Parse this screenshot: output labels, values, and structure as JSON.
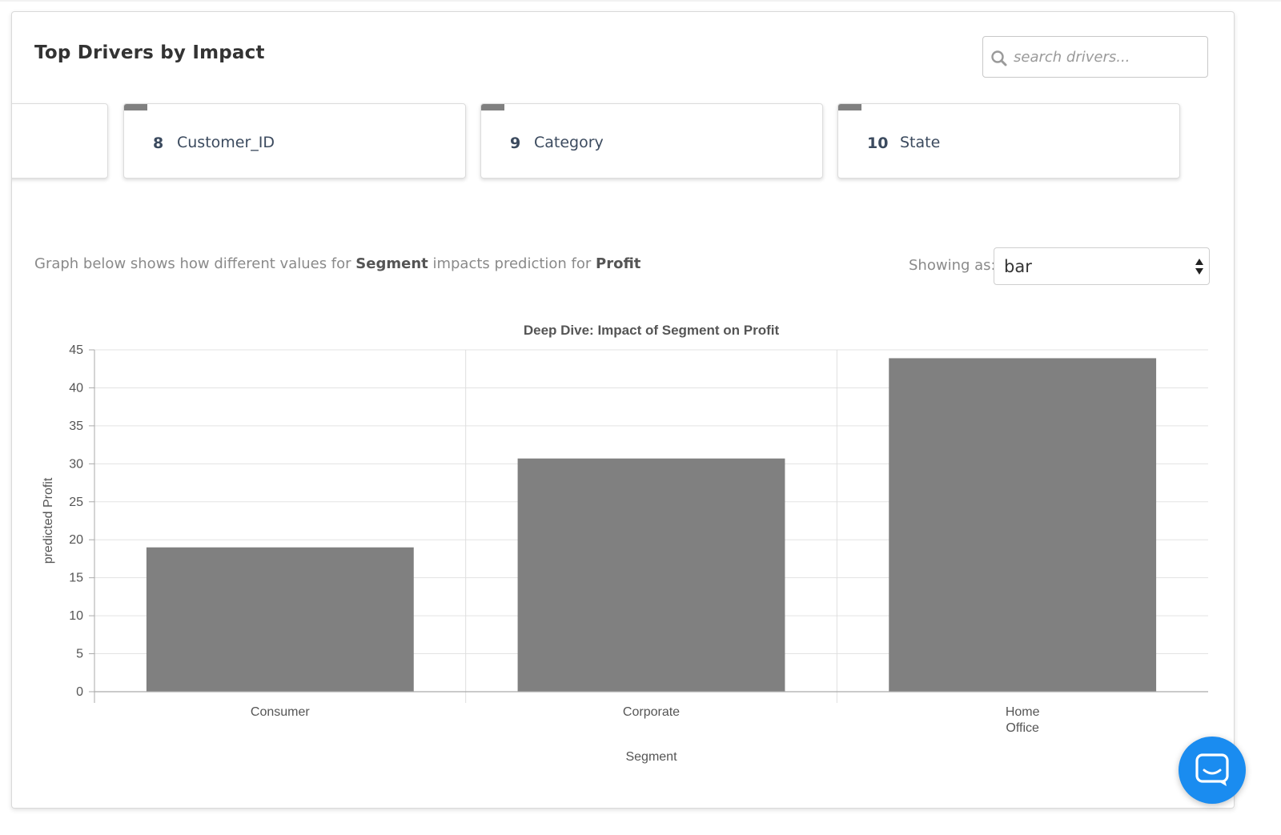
{
  "panel": {
    "title": "Top Drivers by Impact"
  },
  "search": {
    "placeholder": "search drivers..."
  },
  "drivers": [
    {
      "rank": "",
      "label": ""
    },
    {
      "rank": "8",
      "label": "Customer_ID"
    },
    {
      "rank": "9",
      "label": "Category"
    },
    {
      "rank": "10",
      "label": "State"
    }
  ],
  "description": {
    "prefix": "Graph below shows how different values for ",
    "feature": "Segment",
    "middle": " impacts prediction for ",
    "target": "Profit"
  },
  "display": {
    "label": "Showing as:",
    "selected": "bar"
  },
  "colors": {
    "bar": "#808080",
    "chat_button": "#1a8cf0",
    "card_flag": "#808080"
  },
  "chart_data": {
    "type": "bar",
    "title": "Deep Dive: Impact of Segment on Profit",
    "xlabel": "Segment",
    "ylabel": "predicted Profit",
    "categories": [
      [
        "Consumer"
      ],
      [
        "Corporate"
      ],
      [
        "Home",
        "Office"
      ]
    ],
    "values": [
      19,
      30.7,
      43.9
    ],
    "ylim": [
      0,
      45
    ],
    "yticks": [
      "0",
      "5",
      "10",
      "15",
      "20",
      "25",
      "30",
      "35",
      "40",
      "45"
    ],
    "grid": true
  },
  "chat": {
    "icon": "chat-icon"
  }
}
